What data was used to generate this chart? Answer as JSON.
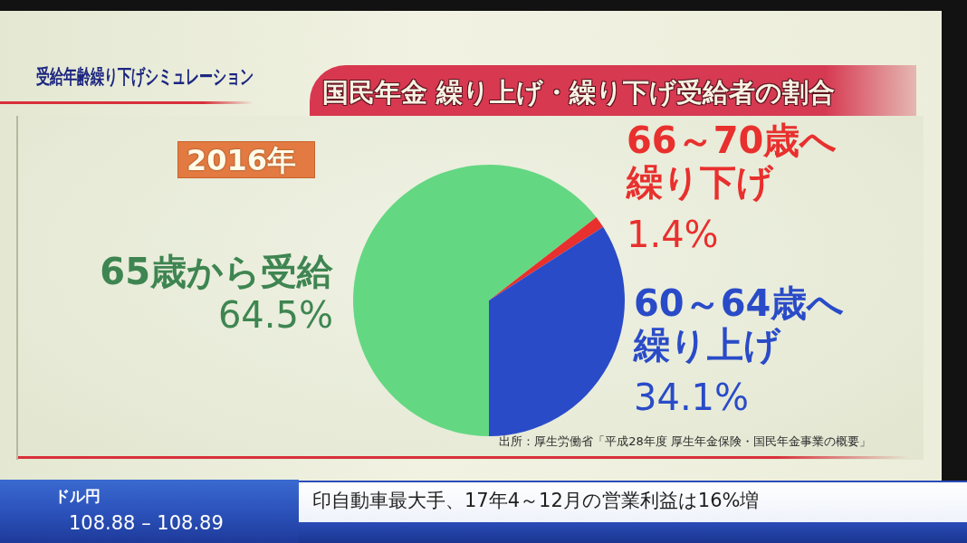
{
  "chart_data": {
    "type": "pie",
    "title": "国民年金 繰り上げ・繰り下げ受給者の割合",
    "subtitle": "受給年齢繰り下げシミュレーション",
    "categories": [
      "65歳から受給",
      "66～70歳へ繰り下げ",
      "60～64歳へ繰り上げ"
    ],
    "values": [
      64.5,
      1.4,
      34.1
    ],
    "colors": [
      "#64d782",
      "#e8302e",
      "#2a4bc8"
    ],
    "value_labels": [
      "64.5%",
      "1.4%",
      "34.1%"
    ],
    "annotations": [
      "2016年",
      "出所：厚生労働省「平成28年度 厚生年金保険・国民年金事業の概要」",
      "ドル円",
      "108.88 – 108.89",
      "印自動車最大手、17年4～12月の営業利益は16%増"
    ]
  }
}
